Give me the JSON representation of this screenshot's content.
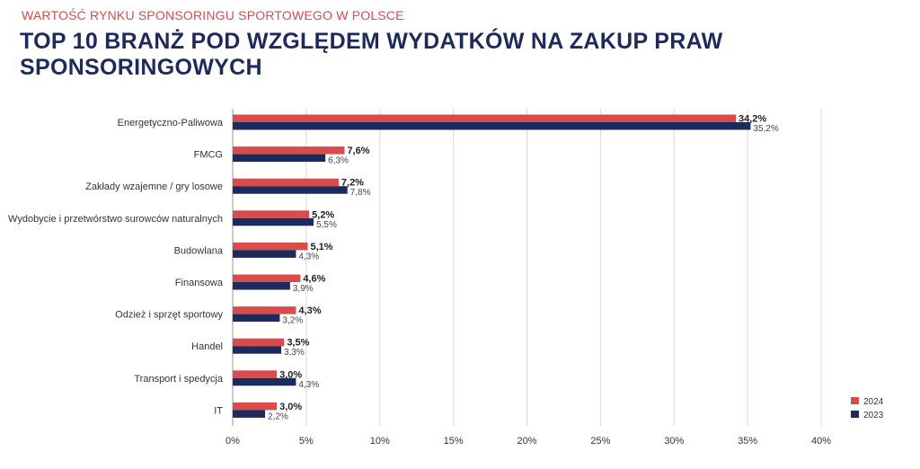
{
  "supertitle": "WARTOŚĆ RYNKU SPONSORINGU SPORTOWEGO W POLSCE",
  "title": "TOP 10 BRANŻ POD WZGLĘDEM WYDATKÓW NA ZAKUP PRAW SPONSORINGOWYCH",
  "colors": {
    "s2024": "#d94c4c",
    "s2023": "#1d2a5c",
    "grid": "#d9d9d9"
  },
  "chart_data": {
    "type": "bar",
    "orientation": "horizontal",
    "categories": [
      "Energetyczno-Paliwowa",
      "FMCG",
      "Zakłady wzajemne / gry losowe",
      "Wydobycie i przetwórstwo surowców naturalnych",
      "Budowlana",
      "Finansowa",
      "Odzież i sprzęt sportowy",
      "Handel",
      "Transport i spedycja",
      "IT"
    ],
    "series": [
      {
        "name": "2024",
        "values": [
          34.2,
          7.6,
          7.2,
          5.2,
          5.1,
          4.6,
          4.3,
          3.5,
          3.0,
          3.0
        ],
        "labels": [
          "34,2%",
          "7,6%",
          "7,2%",
          "5,2%",
          "5,1%",
          "4,6%",
          "4,3%",
          "3,5%",
          "3,0%",
          "3,0%"
        ]
      },
      {
        "name": "2023",
        "values": [
          35.2,
          6.3,
          7.8,
          5.5,
          4.3,
          3.9,
          3.2,
          3.3,
          4.3,
          2.2
        ],
        "labels": [
          "35,2%",
          "6,3%",
          "7,8%",
          "5,5%",
          "4,3%",
          "3,9%",
          "3,2%",
          "3,3%",
          "4,3%",
          "2,2%"
        ]
      }
    ],
    "xlim": [
      0,
      40
    ],
    "xticks": [
      0,
      5,
      10,
      15,
      20,
      25,
      30,
      35,
      40
    ],
    "xtick_labels": [
      "0%",
      "5%",
      "10%",
      "15%",
      "20%",
      "25%",
      "30%",
      "35%",
      "40%"
    ],
    "grid": true,
    "legend_position": "bottom-right"
  }
}
